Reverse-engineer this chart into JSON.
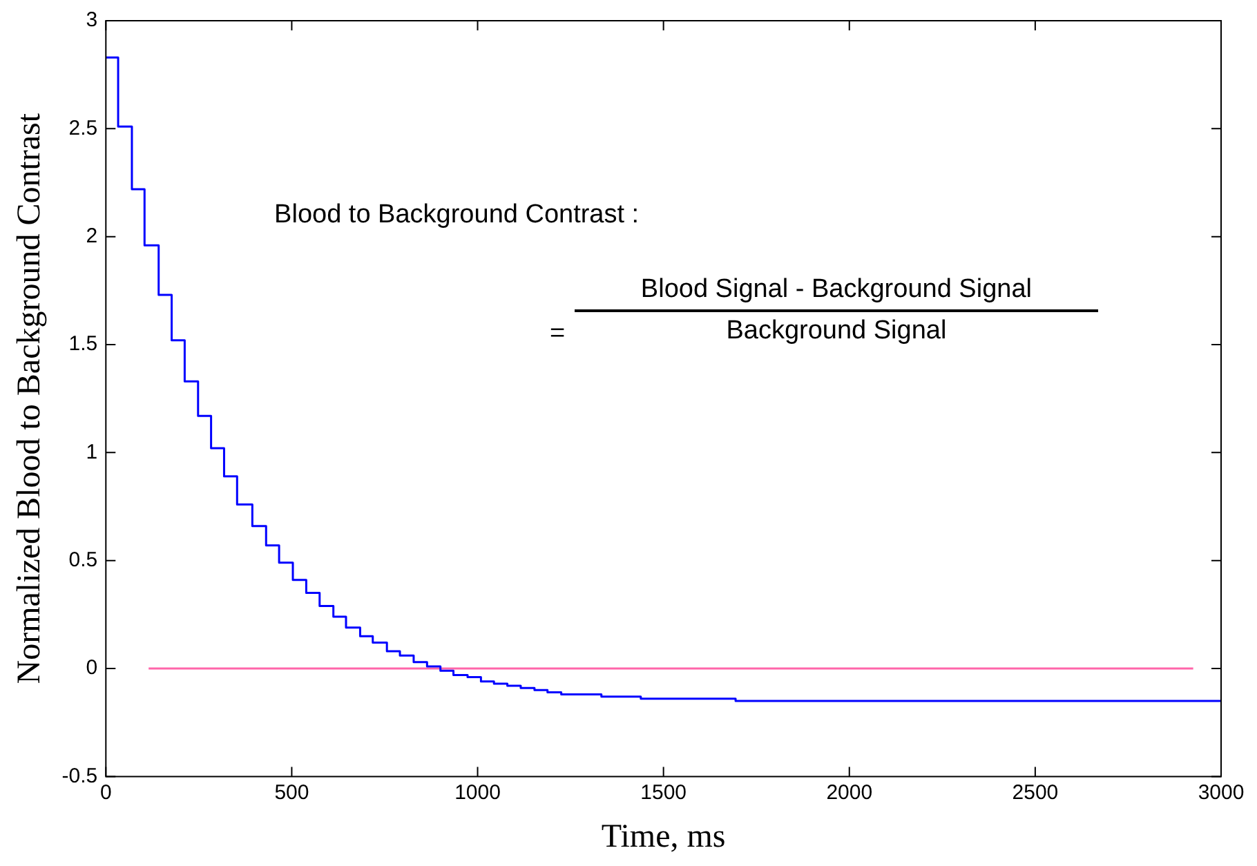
{
  "chart_data": {
    "type": "step",
    "xlabel": "Time, ms",
    "ylabel": "Normalized Blood to Background Contrast",
    "annotations": [
      "Blood to Background Contrast :",
      "=",
      "Blood Signal - Background Signal",
      "Background Signal"
    ],
    "series": [
      {
        "color": "#0000ff",
        "x": [
          0,
          33,
          70,
          104,
          142,
          177,
          212,
          248,
          283,
          318,
          353,
          394,
          431,
          466,
          503,
          539,
          575,
          612,
          646,
          684,
          718,
          756,
          791,
          828,
          864,
          900,
          935,
          973,
          1009,
          1044,
          1080,
          1116,
          1153,
          1188,
          1225,
          1297,
          1333,
          1368,
          1439,
          1546,
          1694,
          1910,
          3000
        ],
        "values": [
          2.83,
          2.51,
          2.22,
          1.96,
          1.73,
          1.52,
          1.33,
          1.17,
          1.02,
          0.89,
          0.76,
          0.66,
          0.57,
          0.49,
          0.41,
          0.35,
          0.29,
          0.24,
          0.19,
          0.15,
          0.12,
          0.08,
          0.06,
          0.03,
          0.01,
          -0.01,
          -0.03,
          -0.04,
          -0.06,
          -0.07,
          -0.08,
          -0.09,
          -0.1,
          -0.11,
          -0.12,
          -0.12,
          -0.13,
          -0.13,
          -0.14,
          -0.14,
          -0.15,
          -0.15,
          -0.15
        ]
      },
      {
        "type": "line",
        "color": "#ff66aa",
        "x": [
          115,
          2925
        ],
        "values": [
          0,
          0
        ]
      }
    ],
    "xlim": [
      0,
      3000
    ],
    "xticks": [
      0,
      500,
      1000,
      1500,
      2000,
      2500,
      3000
    ],
    "ylim": [
      -0.5,
      3
    ],
    "yticks": [
      -0.5,
      0,
      0.5,
      1,
      1.5,
      2,
      2.5,
      3
    ],
    "grid": false,
    "legend": false,
    "marker": "none"
  }
}
